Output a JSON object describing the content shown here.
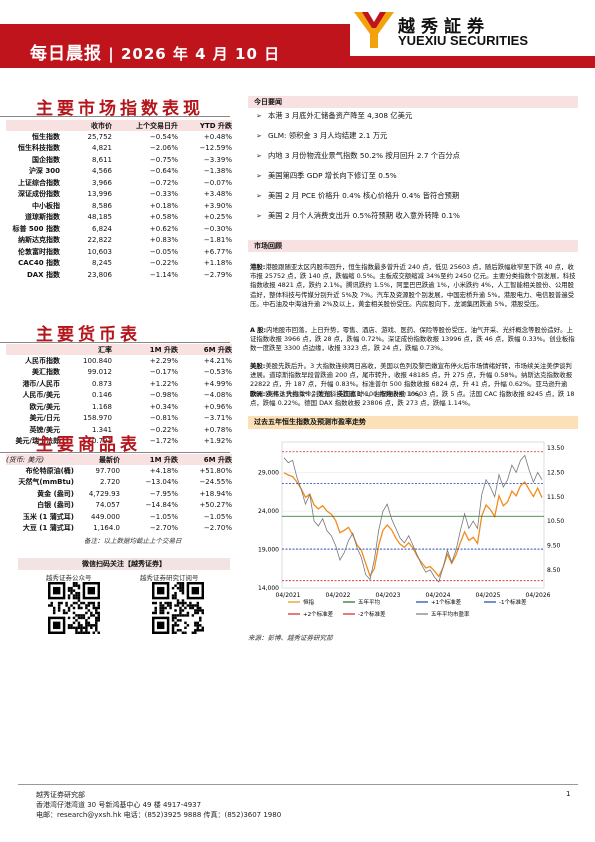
{
  "header": {
    "title": "每日晨报",
    "sep": "|",
    "date": "2026 年 4 月 10 日",
    "logo_cn": "越秀証券",
    "logo_en": "YUEXIU SECURITIES"
  },
  "indices": {
    "title": "主要市场指数表现",
    "columns": [
      "收市价",
      "上个交易日升",
      "YTD 升跌"
    ],
    "rows": [
      {
        "name": "恒生指数",
        "close": "25,752",
        "day": "−0.54%",
        "ytd": "+0.48%"
      },
      {
        "name": "恒生科技指数",
        "close": "4,821",
        "day": "−2.06%",
        "ytd": "−12.59%"
      },
      {
        "name": "国企指数",
        "close": "8,611",
        "day": "−0.75%",
        "ytd": "−3.39%"
      },
      {
        "name": "沪深 300",
        "close": "4,566",
        "day": "−0.64%",
        "ytd": "−1.38%"
      },
      {
        "name": "上证综合指数",
        "close": "3,966",
        "day": "−0.72%",
        "ytd": "−0.07%"
      },
      {
        "name": "深证成份指数",
        "close": "13,996",
        "day": "−0.33%",
        "ytd": "+3.48%"
      },
      {
        "name": "中小板指",
        "close": "8,586",
        "day": "+0.18%",
        "ytd": "+3.90%"
      },
      {
        "name": "道琼斯指数",
        "close": "48,185",
        "day": "+0.58%",
        "ytd": "+0.25%"
      },
      {
        "name": "标普 500 指数",
        "close": "6,824",
        "day": "+0.62%",
        "ytd": "−0.30%"
      },
      {
        "name": "纳斯达克指数",
        "close": "22,822",
        "day": "+0.83%",
        "ytd": "−1.81%"
      },
      {
        "name": "伦敦富时指数",
        "close": "10,603",
        "day": "−0.05%",
        "ytd": "+6.77%"
      },
      {
        "name": "CAC40 指数",
        "close": "8,245",
        "day": "−0.22%",
        "ytd": "+1.18%"
      },
      {
        "name": "DAX 指数",
        "close": "23,806",
        "day": "−1.14%",
        "ytd": "−2.79%"
      }
    ]
  },
  "fx": {
    "title": "主要货币表",
    "columns": [
      "汇率",
      "1M 升跌",
      "6M 升跌"
    ],
    "rows": [
      {
        "name": "人民币指数",
        "rate": "100.840",
        "m1": "+2.29%",
        "m6": "+4.21%"
      },
      {
        "name": "美汇指数",
        "rate": "99.012",
        "m1": "−0.17%",
        "m6": "−0.53%"
      },
      {
        "name": "港币/人民币",
        "rate": "0.873",
        "m1": "+1.22%",
        "m6": "+4.99%"
      },
      {
        "name": "人民币/美元",
        "rate": "0.146",
        "m1": "−0.98%",
        "m6": "−4.08%"
      },
      {
        "name": "欧元/美元",
        "rate": "1.168",
        "m1": "+0.34%",
        "m6": "+0.96%"
      },
      {
        "name": "美元/日元",
        "rate": "158.970",
        "m1": "−0.81%",
        "m6": "−3.71%"
      },
      {
        "name": "英镑/美元",
        "rate": "1.341",
        "m1": "−0.22%",
        "m6": "+0.78%"
      },
      {
        "name": "美元/瑞士法郎",
        "rate": "0.791",
        "m1": "−1.72%",
        "m6": "+1.92%"
      }
    ]
  },
  "commodities": {
    "title": "主要商品表",
    "columns": [
      "(货币: 美元)",
      "最新价",
      "1M 升跌",
      "6M 升跌"
    ],
    "rows": [
      {
        "name": "布伦特原油(桶)",
        "price": "97.700",
        "m1": "+4.18%",
        "m6": "+51.80%"
      },
      {
        "name": "天然气(mmBtu)",
        "price": "2.720",
        "m1": "−13.04%",
        "m6": "−24.55%"
      },
      {
        "name": "黄金 (盎司)",
        "price": "4,729.93",
        "m1": "−7.95%",
        "m6": "+18.94%"
      },
      {
        "name": "白银 (盎司)",
        "price": "74.057",
        "m1": "−14.84%",
        "m6": "+50.27%"
      },
      {
        "name": "玉米 (1 蒲式耳)",
        "price": "449.000",
        "m1": "−1.05%",
        "m6": "−1.05%"
      },
      {
        "name": "大豆 (1 蒲式耳)",
        "price": "1,164.0",
        "m1": "−2.70%",
        "m6": "−2.70%"
      }
    ],
    "note": "备注：以上数据均截止上个交易日"
  },
  "qr": {
    "header": "微信扫码关注【越秀证券】",
    "left_caption": "越秀证券公众号",
    "right_caption": "越秀证券研究订阅号"
  },
  "focus": {
    "header": "今日要闻",
    "items": [
      "本港 3 月底外汇储备资产降至 4,308 亿美元",
      "GLM: 领积金 3 月人均结建 2.1 万元",
      "内地 3 月份物流业景气指数 50.2% 按月回升 2.7 个百分点",
      "美国第四季 GDP 增长向下修订至 0.5%",
      "美国 2 月 PCE 价格升 0.4% 核心价格升 0.4% 皆符合预期",
      "美国 2 月个人消费支出升 0.5%符预期 收入意外转降 0.1%"
    ]
  },
  "market": {
    "header": "市场回顾",
    "hk_label": "港股:",
    "hk_text": "港股跟随亚太区内股市回升，恒生指数最多曾升近 240 点，低见 25603 点，随后跌幅收窄至下跌 40 点，收市报 25752 点，跌 140 点，跌幅缩 0.5%。主板成交额缩减 34%至约 2450 亿元。主要分类指数个别发展，科技指数收报 4821 点，跌约 2.1%。腾讯跌约 1.5%，阿里巴巴跌逾 1%，小米跌约 4%，人工智能相关股份、公用股造好，整体科技与传媒分别升近 5%及 7%。汽车及资源股个别发展，中国宏桥升逾 5%，港股电力、电信股普遍受压。中石油及中海油升逾 2%及以上，黄金相关股份受压。内房股向下，龙湖集团跌逾 5%，港股受压。",
    "a_label": "A 股:",
    "a_text": "内地股市回落，上日升势，零售、酒店、游戏、医药、保险等股份受压，油气开采、光纤概念等股份造好。上证指数收报 3966 点，跌 28 点，跌幅 0.72%。深证成份指数收报 13996 点，跌 46 点，跌幅 0.33%。创业板指数一度跌至 3300 点边缘，收报 3323 点，跌 24 点，跌幅 0.73%。",
    "us_label": "美股:",
    "us_text": "美股先跌后升。3 大指数连续两日高收，美国以色列及黎巴嫩宣布停火后市场情绪好转，市场续关注美伊谈判进展。道琼斯指数早段曾跌逾 200 点，尾市转升，收报 48185 点，升 275 点，升幅 0.58%。纳斯达克指数收报 22822 点，升 187 点，升幅 0.83%。标准普尔 500 指数收报 6824 点，升 41 点，升幅 0.62%。亚马逊升逾 5%，英伟达升约 1%，美光科技跌逾 1%，台积电升约 1%。",
    "eu_label": "欧洲:",
    "eu_text": "欧洲 3 大指数个别发展。英国富时 100 指数收报 10603 点，跌 5 点。法国 CAC 指数收报 8245 点，跌 18 点，跌幅 0.22%。德国 DAX 指数收报 23806 点，跌 273 点，跌幅 1.14%。"
  },
  "chart_title": "过去五年恒生指数及预测市盈率走势",
  "chart_source": "来源：彭博、越秀证券研究部",
  "chart_data": {
    "type": "line",
    "x_labels": [
      "04/2021",
      "04/2022",
      "04/2023",
      "04/2024",
      "04/2025",
      "04/2026"
    ],
    "y_left": {
      "ticks": [
        14000,
        19000,
        24000,
        29000
      ],
      "range": [
        14000,
        33000
      ]
    },
    "y_right": {
      "ticks": [
        8.5,
        9.5,
        10.5,
        11.5,
        12.5,
        13.5
      ],
      "range": [
        7.75,
        13.75
      ]
    },
    "series": [
      {
        "name": "恒指",
        "color": "#f08c1e",
        "axis": "left",
        "values": [
          29000,
          28700,
          28500,
          27800,
          26900,
          25800,
          26200,
          24800,
          24300,
          24700,
          24000,
          23600,
          22800,
          21200,
          21500,
          21900,
          20900,
          19600,
          18900,
          17200,
          15600,
          16500,
          19500,
          21500,
          22200,
          21600,
          20500,
          19700,
          19300,
          19900,
          19200,
          18100,
          17300,
          16600,
          16800,
          16200,
          15500,
          16700,
          18400,
          17200,
          18300,
          19900,
          21300,
          20200,
          20600,
          19800,
          23400,
          24800,
          24200,
          23300,
          26000,
          24700,
          25200,
          26600,
          26000,
          27300,
          27800,
          26800,
          25900,
          27000,
          25752
        ]
      },
      {
        "name": "五年平均",
        "color": "#1a6e1a",
        "axis": "right",
        "values": [
          10.7
        ]
      },
      {
        "name": "+1个标准差",
        "color": "#1a3fb8",
        "axis": "right",
        "values": [
          12.05
        ]
      },
      {
        "name": "-1个标准差",
        "color": "#1a3fb8",
        "axis": "right",
        "values": [
          9.35
        ]
      },
      {
        "name": "+2个标准差",
        "color": "#d92020",
        "axis": "right",
        "values": [
          13.35
        ]
      },
      {
        "name": "-2个标准差",
        "color": "#d92020",
        "axis": "right",
        "values": [
          8.05
        ]
      },
      {
        "name": "五年平均市盈率",
        "color": "#777777",
        "axis": "right",
        "values": [
          13.1,
          12.9,
          13.0,
          12.3,
          11.8,
          11.2,
          11.6,
          10.5,
          10.3,
          10.6,
          10.1,
          9.9,
          9.5,
          8.9,
          9.2,
          9.7,
          10.0,
          9.4,
          9.0,
          8.3,
          8.1,
          8.9,
          10.1,
          10.9,
          11.2,
          10.6,
          10.2,
          9.8,
          9.6,
          9.9,
          9.5,
          9.1,
          8.7,
          8.4,
          8.5,
          8.2,
          8.0,
          8.6,
          9.3,
          8.8,
          9.3,
          10.1,
          10.8,
          10.2,
          10.5,
          10.2,
          11.6,
          12.2,
          11.9,
          11.5,
          12.4,
          11.9,
          12.2,
          12.8,
          12.5,
          13.0,
          13.2,
          12.6,
          12.1,
          12.5,
          12.2
        ]
      }
    ],
    "legend": [
      "恒指",
      "五年平均",
      "+1个标准差",
      "-1个标准差",
      "+2个标准差",
      "-2个标准差",
      "五年平均市盈率"
    ]
  },
  "footer": {
    "org": "越秀证券研究部",
    "address": "香港湾仔港湾道 30 号新鸿基中心 49 楼 4917-4937",
    "contact": "电邮：research@yxsh.hk  电话：(852)3925 9888  传真：(852)3607 1980",
    "page": "1"
  }
}
